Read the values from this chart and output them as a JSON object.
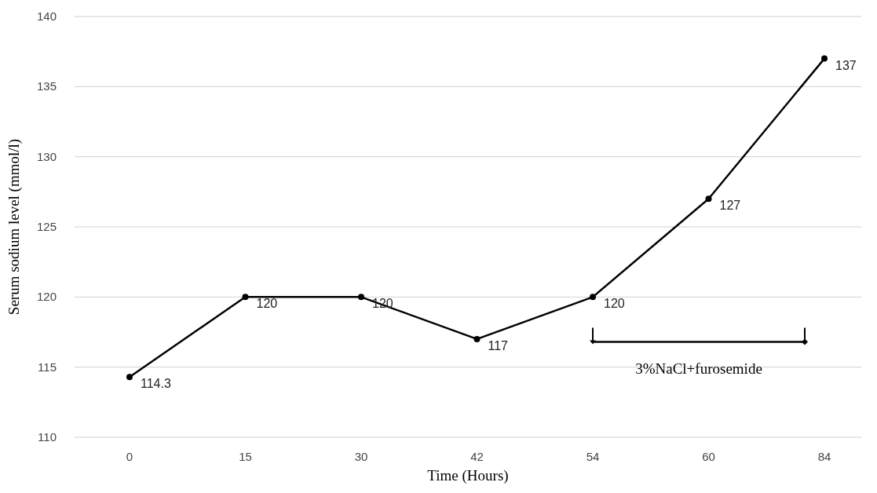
{
  "chart_data": {
    "type": "line",
    "xlabel": "Time (Hours)",
    "ylabel": "Serum sodium level (mmol/l)",
    "categories": [
      "0",
      "15",
      "30",
      "42",
      "54",
      "60",
      "84"
    ],
    "series": [
      {
        "color": "#000000",
        "values": [
          114.3,
          120,
          120,
          117,
          120,
          127,
          137
        ]
      }
    ],
    "ylim": [
      110,
      140
    ],
    "yticks": [
      110,
      115,
      120,
      125,
      130,
      135,
      140
    ],
    "grid": "y",
    "marker": "circle",
    "data_labels": true,
    "annotations": [
      "3%NaCl+furosemide"
    ]
  }
}
